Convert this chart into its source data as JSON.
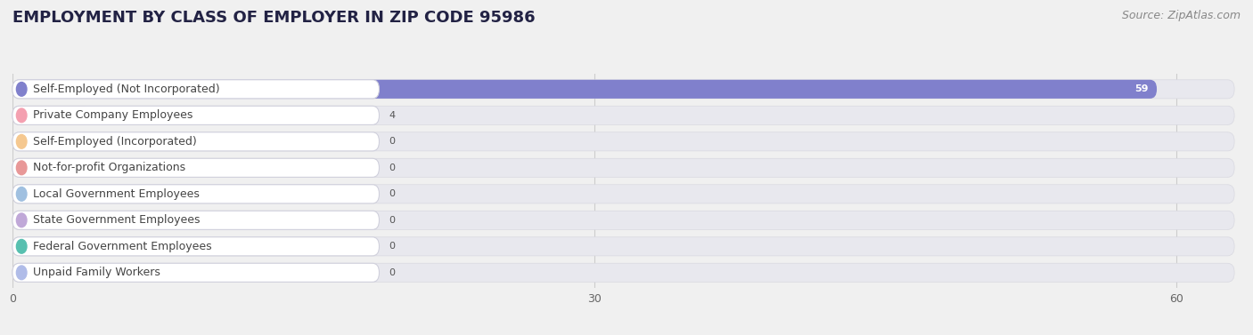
{
  "title": "EMPLOYMENT BY CLASS OF EMPLOYER IN ZIP CODE 95986",
  "source": "Source: ZipAtlas.com",
  "categories": [
    "Self-Employed (Not Incorporated)",
    "Private Company Employees",
    "Self-Employed (Incorporated)",
    "Not-for-profit Organizations",
    "Local Government Employees",
    "State Government Employees",
    "Federal Government Employees",
    "Unpaid Family Workers"
  ],
  "values": [
    59,
    4,
    0,
    0,
    0,
    0,
    0,
    0
  ],
  "bar_colors": [
    "#8080cc",
    "#f4a0b0",
    "#f5c890",
    "#e89898",
    "#a0c0e0",
    "#c0a8d8",
    "#58c0b0",
    "#b0bce8"
  ],
  "dot_colors": [
    "#8080cc",
    "#f4a0b0",
    "#f5c890",
    "#e89898",
    "#a0c0e0",
    "#c0a8d8",
    "#58c0b0",
    "#b0bce8"
  ],
  "xlim_max": 63,
  "xticks": [
    0,
    30,
    60
  ],
  "background_color": "#f0f0f0",
  "row_bg_color": "#e8e8ee",
  "label_box_color": "#ffffff",
  "title_fontsize": 13,
  "source_fontsize": 9,
  "bar_fontsize": 8,
  "label_fontsize": 9
}
